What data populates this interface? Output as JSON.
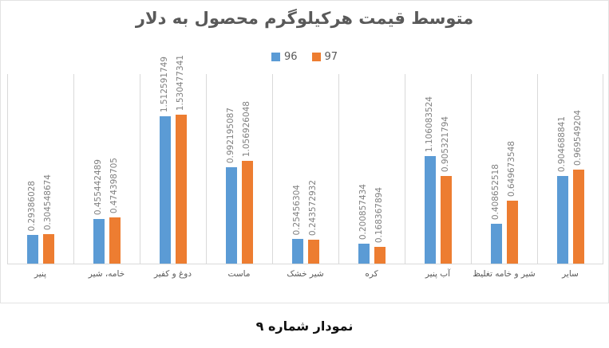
{
  "title": "متوسط قیمت هرکیلوگرم محصول به دلار",
  "caption": "نمودار شماره ۹",
  "legend": [
    {
      "name": "96",
      "color": "#5B9BD5"
    },
    {
      "name": "97",
      "color": "#ED7D31"
    }
  ],
  "chart_data": {
    "type": "bar",
    "title": "متوسط قیمت هرکیلوگرم محصول به دلار",
    "categories": [
      "پنیر",
      "خامه، شیر",
      "دوغ و کفیر",
      "ماست",
      "شیر خشک",
      "کره",
      "آب پنیر",
      "شیر و خامه تغلیظ",
      "سایر"
    ],
    "series": [
      {
        "name": "96",
        "color": "#5B9BD5",
        "values": [
          0.29386028,
          0.455442489,
          1.512591749,
          0.992195087,
          0.25456304,
          0.200857434,
          1.106083524,
          0.408652518,
          0.904688841
        ]
      },
      {
        "name": "97",
        "color": "#ED7D31",
        "values": [
          0.304548674,
          0.474398705,
          1.530477341,
          1.056926048,
          0.243572932,
          0.168367894,
          0.905321794,
          0.649673548,
          0.969549204
        ]
      }
    ],
    "xlabel": "",
    "ylabel": "",
    "ylim": [
      0,
      1.95
    ],
    "grid": "vertical-category-separators",
    "legend_position": "top",
    "data_labels": "rotated-90-above-bars",
    "colors": {
      "title_text": "#595959",
      "axis_text": "#595959",
      "value_label_text": "#808080",
      "gridline": "#d9d9d9"
    }
  }
}
